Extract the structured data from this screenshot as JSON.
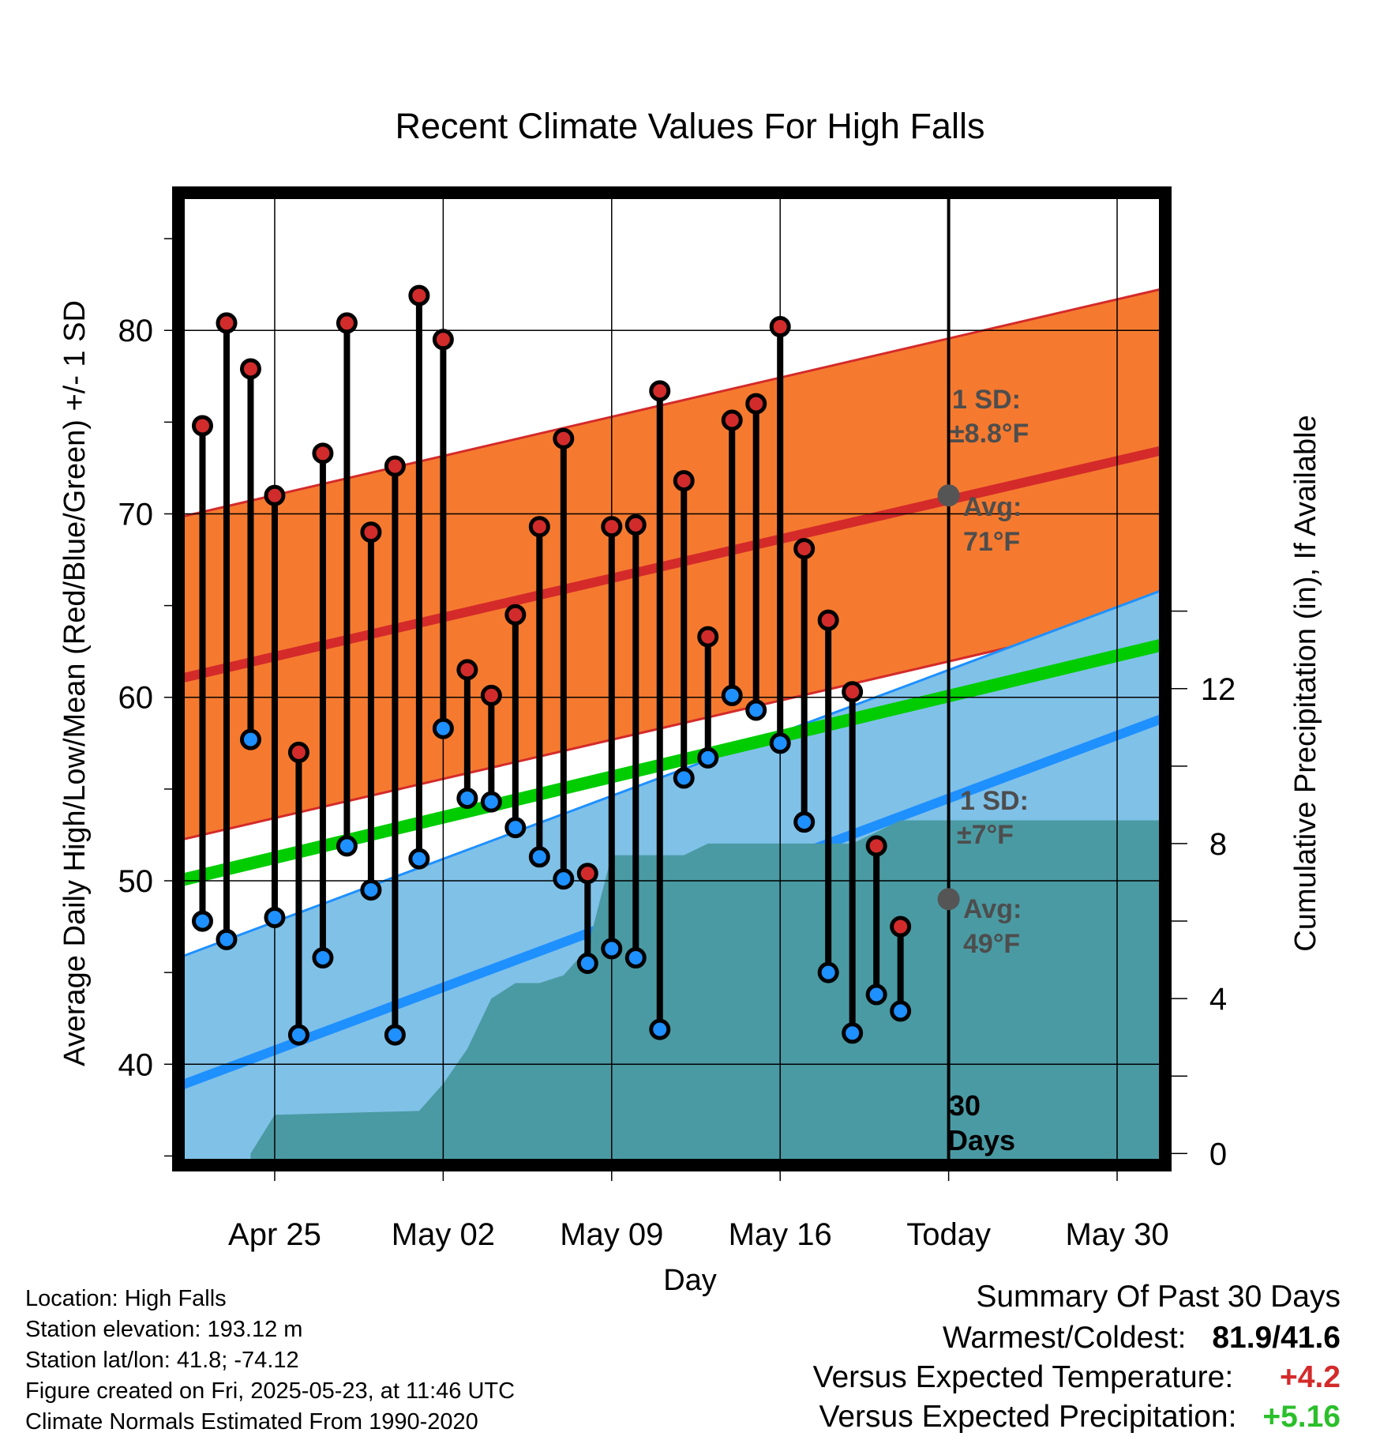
{
  "chart_data": {
    "type": "line",
    "title": "Recent Climate Values For High Falls",
    "xlabel": "Day",
    "ylabel": "Average Daily High/Low/Mean (Red/Blue/Green) +/- 1 SD",
    "y2label": "Cumulative Precipitation (in), If Available",
    "x_tick_labels": [
      "Apr 25",
      "May 02",
      "May 09",
      "May 16",
      "Today",
      "May 30"
    ],
    "x_range": [
      "2025-04-21",
      "2025-06-01"
    ],
    "ylim": [
      34.5,
      87.5
    ],
    "y_ticks": [
      40,
      50,
      60,
      70,
      80
    ],
    "y2lim": [
      -0.3,
      24.8
    ],
    "y2_ticks": [
      0,
      4,
      8,
      12
    ],
    "grid": true,
    "today": "2025-05-23",
    "highs": {
      "dates": [
        "2025-04-22",
        "2025-04-23",
        "2025-04-24",
        "2025-04-25",
        "2025-04-26",
        "2025-04-27",
        "2025-04-28",
        "2025-04-29",
        "2025-04-30",
        "2025-05-01",
        "2025-05-02",
        "2025-05-03",
        "2025-05-04",
        "2025-05-05",
        "2025-05-06",
        "2025-05-07",
        "2025-05-08",
        "2025-05-09",
        "2025-05-10",
        "2025-05-11",
        "2025-05-12",
        "2025-05-13",
        "2025-05-14",
        "2025-05-15",
        "2025-05-16",
        "2025-05-17",
        "2025-05-18",
        "2025-05-19",
        "2025-05-20",
        "2025-05-21",
        "2025-05-22"
      ],
      "values": [
        74.8,
        80.4,
        77.9,
        71.0,
        57.0,
        73.3,
        80.4,
        69.0,
        72.6,
        81.9,
        79.5,
        61.5,
        60.1,
        64.5,
        69.3,
        74.1,
        50.4,
        69.3,
        69.4,
        76.7,
        71.8,
        63.3,
        75.1,
        76.0,
        80.2,
        68.1,
        64.2,
        60.3,
        51.9,
        47.5,
        null
      ]
    },
    "lows": {
      "dates": [
        "2025-04-22",
        "2025-04-23",
        "2025-04-24",
        "2025-04-25",
        "2025-04-26",
        "2025-04-27",
        "2025-04-28",
        "2025-04-29",
        "2025-04-30",
        "2025-05-01",
        "2025-05-02",
        "2025-05-03",
        "2025-05-04",
        "2025-05-05",
        "2025-05-06",
        "2025-05-07",
        "2025-05-08",
        "2025-05-09",
        "2025-05-10",
        "2025-05-11",
        "2025-05-12",
        "2025-05-13",
        "2025-05-14",
        "2025-05-15",
        "2025-05-16",
        "2025-05-17",
        "2025-05-18",
        "2025-05-19",
        "2025-05-20",
        "2025-05-21",
        "2025-05-22"
      ],
      "values": [
        47.8,
        46.8,
        57.7,
        48.0,
        41.6,
        45.8,
        51.9,
        49.5,
        41.6,
        51.2,
        58.3,
        54.5,
        54.3,
        52.9,
        51.3,
        50.1,
        45.5,
        46.3,
        45.8,
        41.9,
        55.6,
        56.7,
        60.1,
        59.3,
        57.5,
        53.2,
        45.0,
        41.7,
        43.8,
        42.9,
        null
      ]
    },
    "normal_high": {
      "start": 61.0,
      "end": 73.5,
      "sd": 8.8
    },
    "normal_low": {
      "start": 38.8,
      "end": 58.9,
      "sd": 7.0
    },
    "normal_mean": {
      "start": 50.0,
      "end": 62.9
    },
    "precip_cumulative": {
      "dates": [
        "2025-04-24",
        "2025-04-25",
        "2025-05-01",
        "2025-05-02",
        "2025-05-03",
        "2025-05-04",
        "2025-05-05",
        "2025-05-06",
        "2025-05-07",
        "2025-05-08",
        "2025-05-09",
        "2025-05-12",
        "2025-05-13",
        "2025-05-14",
        "2025-05-19",
        "2025-05-20",
        "2025-05-21",
        "2025-05-31"
      ],
      "values": [
        0.0,
        1.0,
        1.1,
        1.8,
        2.7,
        4.0,
        4.4,
        4.4,
        4.6,
        5.3,
        7.7,
        7.7,
        8.0,
        8.0,
        8.0,
        8.3,
        8.6,
        8.6
      ]
    },
    "annotations": {
      "high_sd": "1 SD:",
      "high_sd_val": "±8.8°F",
      "high_avg": "Avg:",
      "high_avg_val": "71°F",
      "low_sd": "1 SD:",
      "low_sd_val": "±7°F",
      "low_avg": "Avg:",
      "low_avg_val": "49°F",
      "days_num": "30",
      "days_word": "Days"
    },
    "colors": {
      "high_band": "#f57a2f",
      "high_line": "#d42a2a",
      "low_band": "#80c1e8",
      "low_line": "#1e90ff",
      "mean_line": "#00cc00",
      "precip": "#4a9aa3",
      "high_dot": "#d22b2b",
      "low_dot": "#1e90ff",
      "avg_marker": "#555555"
    }
  },
  "footer": {
    "location": "Location: High Falls",
    "elevation": "Station elevation: 193.12 m",
    "latlon": "Station lat/lon: 41.8; -74.12",
    "created": "Figure created on Fri, 2025-05-23, at 11:46 UTC",
    "normals": "Climate Normals Estimated From 1990-2020"
  },
  "summary": {
    "title": "Summary Of Past 30 Days",
    "warm_cold_label": "Warmest/Coldest:",
    "warm_cold_value": "81.9/41.6",
    "temp_label": "Versus Expected Temperature:",
    "temp_value": "+4.2",
    "temp_color": "#d42a2a",
    "precip_label": "Versus Expected Precipitation:",
    "precip_value": "+5.16",
    "precip_color": "#2bbf2b"
  }
}
